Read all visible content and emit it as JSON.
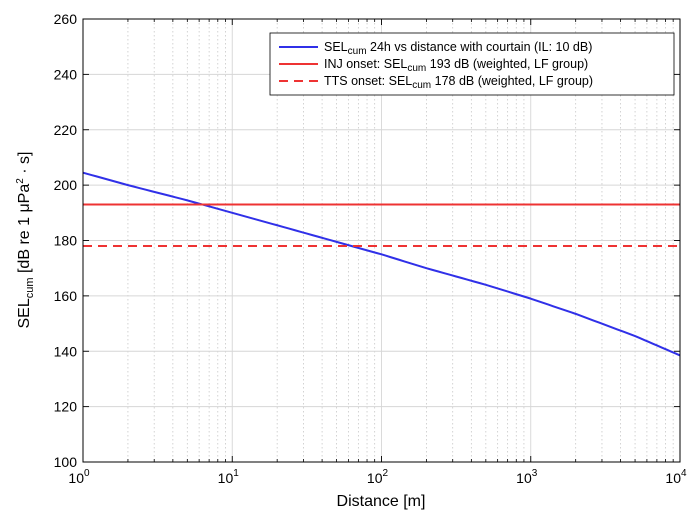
{
  "chart_data": {
    "type": "line",
    "x_scale": "log",
    "xlim": [
      1,
      10000
    ],
    "ylim": [
      100,
      260
    ],
    "grid": true,
    "legend_position": "top-right",
    "x_ticks": [
      {
        "base": "10",
        "exp": "0"
      },
      {
        "base": "10",
        "exp": "1"
      },
      {
        "base": "10",
        "exp": "2"
      },
      {
        "base": "10",
        "exp": "3"
      },
      {
        "base": "10",
        "exp": "4"
      }
    ],
    "y_ticks": [
      "100",
      "120",
      "140",
      "160",
      "180",
      "200",
      "220",
      "240",
      "260"
    ],
    "xlabel": "Distance [m]",
    "ylabel": {
      "main": "SEL",
      "sub": "cum",
      "rest": " [dB re 1 μPa",
      "sup": "2",
      "tail": " · s]"
    },
    "series": [
      {
        "name": {
          "pre": "SEL",
          "sub": "cum",
          "post": " 24h vs distance with courtain (IL: 10 dB)"
        },
        "color": "#3030e8",
        "style": "solid",
        "x": [
          1,
          2,
          5,
          10,
          20,
          50,
          100,
          200,
          500,
          1000,
          2000,
          5000,
          10000
        ],
        "y": [
          204.5,
          200.0,
          194.5,
          190.0,
          185.5,
          179.5,
          175.0,
          170.0,
          164.0,
          159.0,
          153.5,
          145.5,
          138.5
        ]
      },
      {
        "name": {
          "pre": "INJ onset: SEL",
          "sub": "cum",
          "post": " 193 dB (weighted, LF group)"
        },
        "color": "#ee3333",
        "style": "solid",
        "x": [
          1,
          10000
        ],
        "y": [
          193,
          193
        ]
      },
      {
        "name": {
          "pre": "TTS onset: SEL",
          "sub": "cum",
          "post": " 178 dB (weighted, LF group)"
        },
        "color": "#ee3333",
        "style": "dashed",
        "x": [
          1,
          10000
        ],
        "y": [
          178,
          178
        ]
      }
    ]
  }
}
